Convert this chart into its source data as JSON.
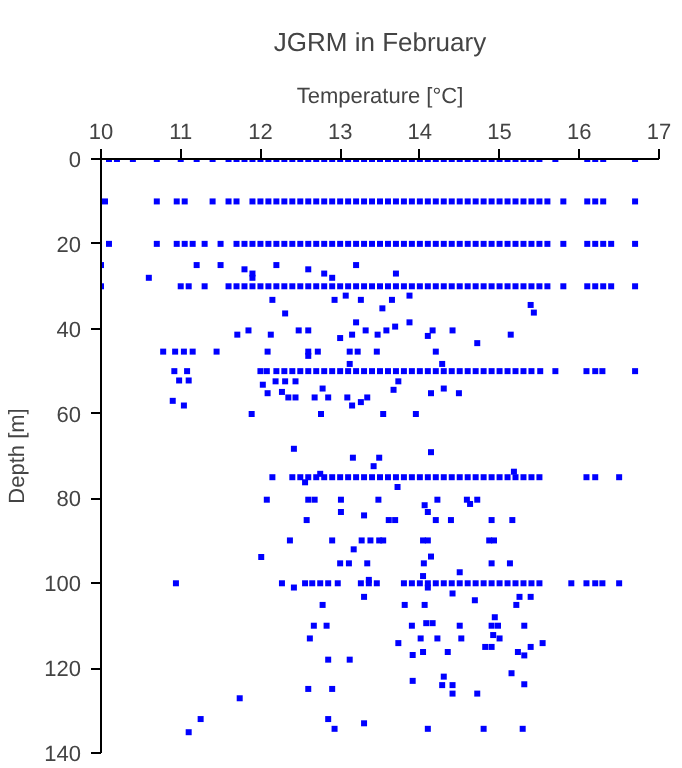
{
  "chart_data": {
    "type": "scatter",
    "title": "JGRM in February",
    "xlabel": "Temperature [°C]",
    "ylabel": "Depth [m]",
    "xlim": [
      10,
      17
    ],
    "xticks": [
      10,
      11,
      12,
      13,
      14,
      15,
      16,
      17
    ],
    "ylim": [
      140,
      0
    ],
    "yticks": [
      0,
      20,
      40,
      60,
      80,
      100,
      120,
      140
    ],
    "grid": false,
    "marker": "square",
    "color": "#0000ff",
    "x": [
      10.1,
      10.2,
      10.4,
      10.7,
      11.0,
      11.2,
      11.4,
      11.6,
      11.7,
      11.8,
      11.9,
      12.0,
      12.1,
      12.2,
      12.3,
      12.4,
      12.5,
      12.6,
      12.7,
      12.8,
      12.9,
      13.0,
      13.1,
      13.2,
      13.3,
      13.4,
      13.5,
      13.6,
      13.7,
      13.8,
      13.9,
      14.0,
      14.1,
      14.2,
      14.3,
      14.4,
      14.5,
      14.6,
      14.7,
      14.8,
      14.9,
      15.0,
      15.1,
      15.2,
      15.3,
      15.4,
      15.5,
      15.7,
      16.1,
      16.2,
      16.3,
      16.7,
      10.05,
      10.7,
      10.95,
      11.05,
      11.4,
      11.6,
      11.7,
      11.9,
      12.0,
      12.1,
      12.2,
      12.3,
      12.4,
      12.5,
      12.6,
      12.7,
      12.8,
      12.9,
      13.0,
      13.1,
      13.2,
      13.3,
      13.4,
      13.5,
      13.6,
      13.7,
      13.8,
      13.9,
      14.0,
      14.1,
      14.2,
      14.3,
      14.4,
      14.5,
      14.6,
      14.7,
      14.8,
      14.9,
      15.0,
      15.1,
      15.2,
      15.3,
      15.4,
      15.5,
      15.6,
      15.8,
      16.1,
      16.2,
      16.3,
      16.7,
      10.1,
      10.7,
      10.95,
      11.05,
      11.15,
      11.3,
      11.5,
      11.7,
      11.8,
      11.9,
      12.0,
      12.1,
      12.2,
      12.3,
      12.4,
      12.5,
      12.6,
      12.7,
      12.8,
      12.9,
      13.0,
      13.1,
      13.2,
      13.3,
      13.4,
      13.5,
      13.6,
      13.7,
      13.8,
      13.9,
      14.0,
      14.1,
      14.2,
      14.3,
      14.4,
      14.5,
      14.6,
      14.7,
      14.8,
      14.9,
      15.0,
      15.1,
      15.2,
      15.3,
      15.4,
      15.5,
      15.6,
      15.8,
      16.1,
      16.2,
      16.3,
      16.4,
      16.7,
      10.0,
      11.0,
      11.1,
      11.3,
      11.6,
      11.7,
      11.8,
      11.9,
      12.0,
      12.1,
      12.2,
      12.3,
      12.4,
      12.5,
      12.6,
      12.7,
      12.8,
      12.9,
      13.0,
      13.1,
      13.2,
      13.3,
      13.4,
      13.5,
      13.6,
      13.7,
      13.8,
      13.9,
      14.0,
      14.1,
      14.2,
      14.3,
      14.4,
      14.5,
      14.6,
      14.7,
      14.8,
      14.9,
      15.0,
      15.1,
      15.2,
      15.3,
      15.4,
      15.5,
      15.6,
      15.8,
      16.1,
      16.2,
      16.3,
      16.4,
      16.7,
      10.92,
      11.08,
      12.0,
      12.08,
      12.2,
      12.3,
      12.4,
      12.5,
      12.6,
      12.7,
      12.8,
      12.9,
      13.0,
      13.1,
      13.2,
      13.3,
      13.4,
      13.5,
      13.6,
      13.7,
      13.8,
      13.9,
      14.0,
      14.1,
      14.2,
      14.3,
      14.4,
      14.5,
      14.6,
      14.7,
      14.8,
      14.9,
      15.0,
      15.1,
      15.2,
      15.3,
      15.4,
      15.51,
      15.7,
      16.09,
      16.2,
      16.29,
      16.7,
      12.15,
      12.4,
      12.5,
      12.6,
      12.7,
      12.8,
      12.9,
      13.0,
      13.1,
      13.2,
      13.3,
      13.4,
      13.5,
      13.6,
      13.7,
      13.8,
      13.9,
      14.0,
      14.1,
      14.2,
      14.3,
      14.4,
      14.5,
      14.6,
      14.7,
      14.8,
      14.9,
      15.0,
      15.1,
      15.2,
      15.3,
      15.4,
      15.5,
      16.09,
      16.2,
      16.5,
      10.94,
      12.27,
      12.56,
      12.65,
      12.75,
      12.85,
      12.97,
      13.26,
      13.36,
      13.46,
      13.8,
      13.9,
      14.0,
      14.1,
      14.2,
      14.3,
      14.4,
      14.5,
      14.6,
      14.7,
      14.8,
      14.9,
      15.0,
      15.1,
      15.2,
      15.3,
      15.4,
      15.5,
      15.9,
      16.09,
      16.2,
      16.29,
      16.5,
      10.0,
      11.2,
      11.5,
      11.8,
      11.9,
      12.2,
      12.6,
      12.8,
      13.2,
      13.7,
      10.6,
      11.9,
      12.9,
      12.15,
      12.93,
      13.07,
      13.26,
      13.65,
      13.53,
      13.87,
      12.31,
      15.39,
      15.43,
      11.71,
      11.85,
      12.13,
      12.48,
      12.6,
      13.0,
      13.15,
      13.2,
      13.32,
      13.47,
      13.58,
      13.69,
      13.87,
      14.1,
      14.16,
      14.41,
      14.72,
      15.14,
      10.78,
      10.93,
      11.04,
      11.15,
      11.45,
      12.09,
      12.6,
      12.72,
      13.12,
      13.22,
      13.46,
      14.2,
      12.6,
      13.12,
      14.28,
      10.98,
      11.1,
      12.03,
      12.19,
      12.31,
      12.44,
      12.09,
      12.27,
      12.35,
      12.44,
      12.68,
      12.78,
      12.85,
      13.09,
      13.34,
      13.26,
      13.15,
      13.67,
      13.73,
      14.14,
      14.3,
      14.49,
      10.9,
      11.04,
      11.89,
      12.76,
      13.54,
      13.95,
      12.42,
      13.16,
      13.49,
      14.14,
      13.42,
      15.18,
      12.75,
      13.72,
      12.56,
      12.08,
      12.6,
      12.68,
      13.01,
      13.48,
      14.22,
      14.59,
      14.72,
      14.63,
      14.06,
      14.1,
      13.01,
      13.3,
      12.58,
      13.61,
      13.69,
      14.2,
      14.39,
      14.9,
      15.16,
      12.37,
      12.9,
      13.27,
      13.38,
      13.49,
      13.54,
      14.04,
      14.1,
      14.87,
      14.93,
      13.17,
      13.0,
      13.11,
      13.34,
      14.05,
      14.14,
      14.9,
      15.13,
      12.01,
      14.5,
      14.04,
      13.36,
      12.42,
      14.1,
      12.78,
      13.81,
      14.06,
      13.3,
      14.41,
      14.69,
      15.21,
      15.25,
      15.39,
      14.94,
      12.67,
      12.83,
      13.9,
      14.08,
      14.16,
      14.5,
      14.9,
      14.98,
      15.31,
      12.62,
      14.01,
      14.22,
      14.52,
      14.92,
      15.0,
      13.73,
      14.82,
      14.9,
      15.39,
      15.54,
      13.91,
      14.04,
      14.35,
      15.23,
      15.31,
      12.85,
      13.12,
      15.15,
      13.91,
      14.3,
      14.28,
      14.41,
      15.31,
      12.6,
      12.9,
      14.41,
      14.72,
      11.74,
      11.25,
      12.85,
      13.3,
      11.1,
      12.93,
      14.1,
      14.8,
      15.29
    ],
    "values": [
      0,
      0,
      0,
      0,
      0,
      0,
      0,
      0,
      0,
      0,
      0,
      0,
      0,
      0,
      0,
      0,
      0,
      0,
      0,
      0,
      0,
      0,
      0,
      0,
      0,
      0,
      0,
      0,
      0,
      0,
      0,
      0,
      0,
      0,
      0,
      0,
      0,
      0,
      0,
      0,
      0,
      0,
      0,
      0,
      0,
      0,
      0,
      0,
      0,
      0,
      0,
      0,
      10,
      10,
      10,
      10,
      10,
      10,
      10,
      10,
      10,
      10,
      10,
      10,
      10,
      10,
      10,
      10,
      10,
      10,
      10,
      10,
      10,
      10,
      10,
      10,
      10,
      10,
      10,
      10,
      10,
      10,
      10,
      10,
      10,
      10,
      10,
      10,
      10,
      10,
      10,
      10,
      10,
      10,
      10,
      10,
      10,
      10,
      10,
      10,
      10,
      10,
      20,
      20,
      20,
      20,
      20,
      20,
      20,
      20,
      20,
      20,
      20,
      20,
      20,
      20,
      20,
      20,
      20,
      20,
      20,
      20,
      20,
      20,
      20,
      20,
      20,
      20,
      20,
      20,
      20,
      20,
      20,
      20,
      20,
      20,
      20,
      20,
      20,
      20,
      20,
      20,
      20,
      20,
      20,
      20,
      20,
      20,
      20,
      20,
      20,
      20,
      20,
      20,
      20,
      30,
      30,
      30,
      30,
      30,
      30,
      30,
      30,
      30,
      30,
      30,
      30,
      30,
      30,
      30,
      30,
      30,
      30,
      30,
      30,
      30,
      30,
      30,
      30,
      30,
      30,
      30,
      30,
      30,
      30,
      30,
      30,
      30,
      30,
      30,
      30,
      30,
      30,
      30,
      30,
      30,
      30,
      30,
      30,
      30,
      30,
      30,
      30,
      30,
      30,
      30,
      50,
      50,
      50,
      50,
      50,
      50,
      50,
      50,
      50,
      50,
      50,
      50,
      50,
      50,
      50,
      50,
      50,
      50,
      50,
      50,
      50,
      50,
      50,
      50,
      50,
      50,
      50,
      50,
      50,
      50,
      50,
      50,
      50,
      50,
      50,
      50,
      50,
      50,
      50,
      50,
      50,
      50,
      50,
      75,
      75,
      75,
      75,
      75,
      75,
      75,
      75,
      75,
      75,
      75,
      75,
      75,
      75,
      75,
      75,
      75,
      75,
      75,
      75,
      75,
      75,
      75,
      75,
      75,
      75,
      75,
      75,
      75,
      75,
      75,
      75,
      75,
      75,
      75,
      75,
      100,
      100,
      100,
      100,
      100,
      100,
      100,
      100,
      100,
      100,
      100,
      100,
      100,
      100,
      100,
      100,
      100,
      100,
      100,
      100,
      100,
      100,
      100,
      100,
      100,
      100,
      100,
      100,
      100,
      100,
      100,
      100,
      100,
      25,
      25,
      25,
      26,
      27,
      25,
      26,
      27,
      25,
      27,
      28,
      28,
      28,
      33.2,
      33.2,
      32.2,
      33.2,
      33.2,
      35.2,
      32.2,
      36.4,
      34.4,
      36.2,
      41.4,
      40.4,
      41.4,
      40.4,
      40.4,
      42.2,
      41.4,
      38.5,
      40.4,
      41.4,
      40.4,
      39.5,
      38.5,
      41.7,
      40.4,
      40.4,
      43.4,
      41.4,
      45.4,
      45.4,
      45.4,
      45.4,
      45.4,
      45.4,
      45.4,
      45.4,
      45.4,
      45.4,
      45.4,
      45.4,
      46.4,
      48.3,
      48.3,
      52.2,
      52.2,
      53.2,
      52.4,
      52.4,
      52.4,
      55.2,
      54.9,
      56.2,
      56.2,
      56.2,
      54.1,
      56.2,
      56.2,
      56.2,
      57.3,
      58.1,
      54.4,
      52.4,
      55.2,
      54.1,
      55.2,
      57,
      58.1,
      60.1,
      60.1,
      60.1,
      60.1,
      68.3,
      70.4,
      70.4,
      69.1,
      72.4,
      73.7,
      74.2,
      77.3,
      76.2,
      80.3,
      80.3,
      80.3,
      80.3,
      80.3,
      80.3,
      80.3,
      80.3,
      81.3,
      81.6,
      83.2,
      83.2,
      84,
      85.1,
      85.1,
      85.1,
      85.1,
      85.1,
      85.1,
      85.1,
      89.9,
      89.9,
      89.9,
      89.9,
      89.9,
      89.9,
      89.9,
      89.9,
      89.9,
      89.9,
      92,
      95.3,
      95.3,
      95.3,
      95.3,
      93.7,
      95.3,
      95.3,
      93.8,
      97.4,
      98.3,
      99.2,
      101,
      101,
      105.1,
      105.1,
      105.1,
      103.2,
      102.4,
      104,
      105.1,
      103.2,
      103.2,
      108,
      110,
      110,
      110,
      109.4,
      109.4,
      110,
      110,
      110,
      110,
      113,
      113,
      113,
      113,
      112.2,
      113,
      114.1,
      115,
      115,
      115,
      114.1,
      116.9,
      116.2,
      116.2,
      116.2,
      117,
      118,
      118,
      121.2,
      123,
      122,
      124,
      124,
      123.8,
      124.9,
      124.9,
      126,
      126,
      127.1,
      132,
      132,
      133,
      135.1,
      134.3,
      134.3,
      134.3,
      134.3
    ]
  }
}
